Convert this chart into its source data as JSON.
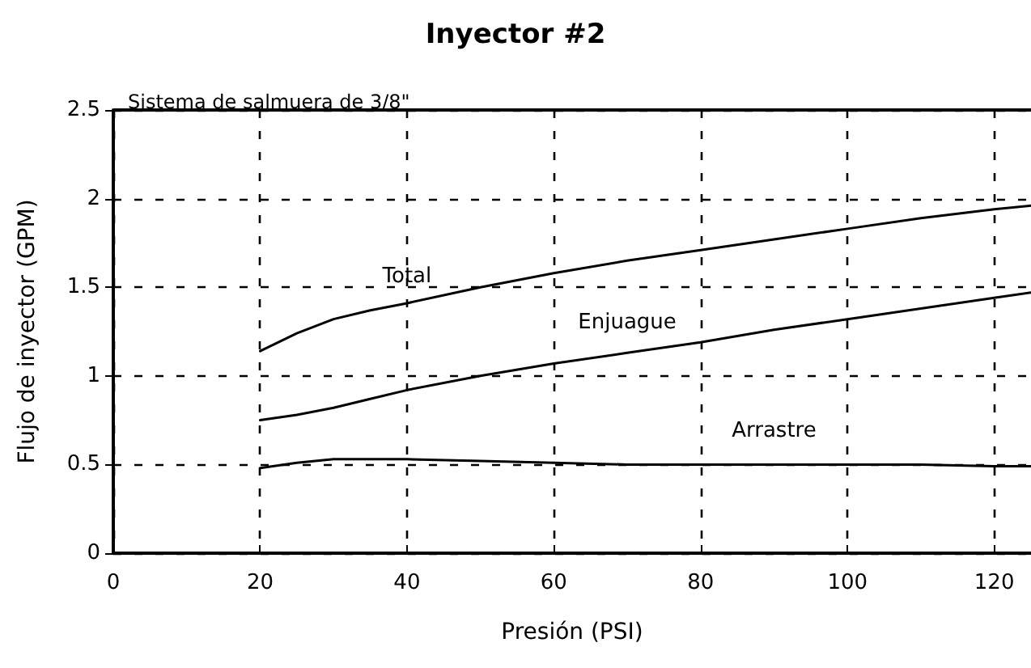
{
  "chart_data": {
    "type": "line",
    "title": "Inyector #2",
    "subtitle": "Sistema de salmuera de 3/8\"",
    "xlabel": "Presión (PSI)",
    "ylabel": "Flujo de inyector (GPM)",
    "x": [
      20,
      25,
      30,
      35,
      40,
      50,
      60,
      70,
      80,
      90,
      100,
      110,
      120,
      125
    ],
    "series": [
      {
        "name": "Total",
        "color": "#000000",
        "values": [
          1.14,
          1.24,
          1.32,
          1.37,
          1.41,
          1.5,
          1.58,
          1.65,
          1.71,
          1.77,
          1.83,
          1.89,
          1.94,
          1.96
        ]
      },
      {
        "name": "Enjuague",
        "color": "#000000",
        "values": [
          0.75,
          0.78,
          0.82,
          0.87,
          0.92,
          1.0,
          1.07,
          1.13,
          1.19,
          1.26,
          1.32,
          1.38,
          1.44,
          1.47
        ]
      },
      {
        "name": "Arrastre",
        "color": "#000000",
        "values": [
          0.48,
          0.51,
          0.53,
          0.53,
          0.53,
          0.52,
          0.51,
          0.5,
          0.5,
          0.5,
          0.5,
          0.5,
          0.49,
          0.49
        ]
      }
    ],
    "xlim": [
      0,
      125
    ],
    "xticks": [
      0,
      20,
      40,
      60,
      80,
      100,
      120
    ],
    "ylim": [
      0,
      2.5
    ],
    "yticks": [
      0,
      0.5,
      1,
      1.5,
      2,
      2.5
    ],
    "grid": true,
    "legend": false,
    "marker": "none",
    "line_style": "solid"
  }
}
